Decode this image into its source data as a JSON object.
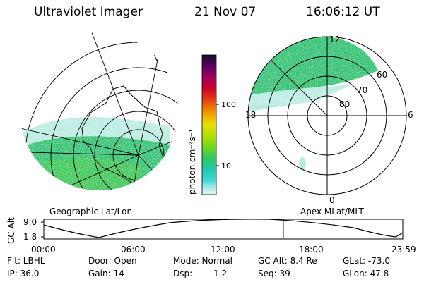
{
  "header": {
    "instrument": "Ultraviolet Imager",
    "date": "21 Nov 07",
    "time": "16:06:12 UT"
  },
  "colorbar": {
    "unit_label": "photon cm⁻²s⁻¹",
    "ticks": [
      "100",
      "10"
    ],
    "colors": [
      "#1a0a2e",
      "#5a0060",
      "#a0005a",
      "#d0002a",
      "#e04010",
      "#f07a00",
      "#f0b000",
      "#e8e000",
      "#b0e000",
      "#70d820",
      "#30c860",
      "#20c8b0",
      "#40d8d8",
      "#a8e8e8",
      "#e8f4f4"
    ]
  },
  "geo_map": {
    "label": "Geographic Lat/Lon",
    "aurora_color": "#30c070",
    "dim_color": "#b8ece0"
  },
  "apex_map": {
    "label": "Apex MLat/MLT",
    "mlt_labels": {
      "top": "12",
      "bottom": "0",
      "left": "18",
      "right": "6"
    },
    "lat_labels": [
      "60",
      "70",
      "80"
    ]
  },
  "altitude_plot": {
    "axis_label": "GC Alt",
    "y_top": "9.0",
    "y_bottom": "1.8",
    "x_ticks": [
      "00:00",
      "06:00",
      "12:00",
      "18:00",
      "23:59"
    ],
    "marker_color": "#e00000"
  },
  "info": {
    "flt": "Flt: LBHL",
    "ip": "IP: 36.0",
    "door": "Door: Open",
    "gain": "Gain: 14",
    "mode": "Mode: Normal",
    "dsp_label": "Dsp:",
    "dsp_value": "1.2",
    "gc_alt": "GC Alt: 8.4 Re",
    "seq": "Seq: 39",
    "glat": "GLat: -73.0",
    "glon": "GLon: 47.8"
  }
}
